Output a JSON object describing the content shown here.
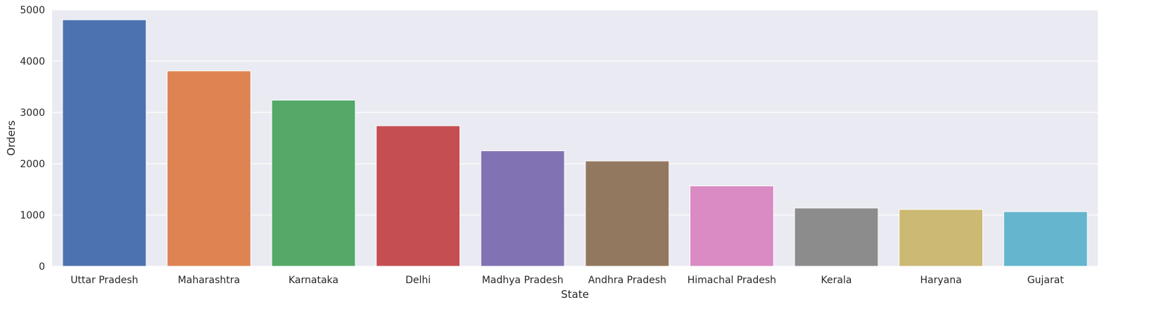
{
  "chart_data": {
    "type": "bar",
    "title": "",
    "xlabel": "State",
    "ylabel": "Orders",
    "categories": [
      "Uttar Pradesh",
      "Maharashtra",
      "Karnataka",
      "Delhi",
      "Madhya Pradesh",
      "Andhra Pradesh",
      "Himachal Pradesh",
      "Kerala",
      "Haryana",
      "Gujarat"
    ],
    "values": [
      4807,
      3810,
      3240,
      2740,
      2252,
      2054,
      1568,
      1137,
      1109,
      1066
    ],
    "ylim": [
      0,
      5000
    ],
    "yticks": [
      0,
      1000,
      2000,
      3000,
      4000,
      5000
    ],
    "grid": true,
    "legend": "none",
    "colors": {
      "background": "#eaeaf2",
      "grid": "#ffffff",
      "bars": [
        "#4c72b0",
        "#dd8452",
        "#55a868",
        "#c44e52",
        "#8172b3",
        "#937860",
        "#da8bc3",
        "#8c8c8c",
        "#ccb974",
        "#64b5cd"
      ]
    }
  }
}
